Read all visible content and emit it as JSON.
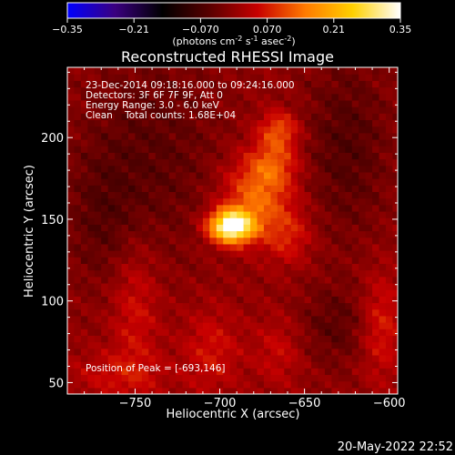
{
  "colorbar": {
    "ticks": [
      "-0.35",
      "-0.21",
      "-0.070",
      "0.070",
      "0.21",
      "0.35"
    ],
    "tick_values": [
      -0.35,
      -0.21,
      -0.07,
      0.07,
      0.21,
      0.35
    ],
    "range": [
      -0.35,
      0.35
    ],
    "unit_main": "(photons cm",
    "unit_sup1": "-2",
    "unit_mid1": " s",
    "unit_sup2": "-1",
    "unit_mid2": " asec",
    "unit_sup3": "-2",
    "unit_end": ")",
    "colors": [
      "#0000ff",
      "#3a0080",
      "#000000",
      "#5a0000",
      "#c80000",
      "#ff7a00",
      "#ffd000",
      "#ffffff"
    ]
  },
  "chart_data": {
    "type": "heatmap",
    "title": "Reconstructed RHESSI Image",
    "xlabel": "Heliocentric X (arcsec)",
    "ylabel": "Heliocentric Y (arcsec)",
    "xlim": [
      -790,
      -595
    ],
    "ylim": [
      43,
      243
    ],
    "xticks": [
      -750,
      -700,
      -650,
      -600
    ],
    "xtick_labels": [
      "−750",
      "−700",
      "−650",
      "−600"
    ],
    "yticks": [
      50,
      100,
      150,
      200
    ],
    "ytick_labels": [
      "50",
      "100",
      "150",
      "200"
    ],
    "peak_value": 0.35,
    "sources": [
      {
        "x": -693,
        "y": 146,
        "sx": 9,
        "sy": 7,
        "amp": 0.38
      },
      {
        "x": -678,
        "y": 165,
        "sx": 14,
        "sy": 16,
        "amp": 0.13
      },
      {
        "x": -665,
        "y": 205,
        "sx": 8,
        "sy": 8,
        "amp": 0.11
      },
      {
        "x": -668,
        "y": 185,
        "sx": 10,
        "sy": 10,
        "amp": 0.09
      },
      {
        "x": -660,
        "y": 140,
        "sx": 10,
        "sy": 12,
        "amp": 0.07
      },
      {
        "x": -750,
        "y": 95,
        "sx": 10,
        "sy": 30,
        "amp": 0.06
      },
      {
        "x": -705,
        "y": 70,
        "sx": 12,
        "sy": 18,
        "amp": 0.06
      },
      {
        "x": -665,
        "y": 70,
        "sx": 10,
        "sy": 15,
        "amp": 0.05
      },
      {
        "x": -605,
        "y": 85,
        "sx": 9,
        "sy": 22,
        "amp": 0.08
      },
      {
        "x": -760,
        "y": 55,
        "sx": 20,
        "sy": 10,
        "amp": 0.05
      },
      {
        "x": -740,
        "y": 190,
        "sx": 30,
        "sy": 45,
        "amp": -0.05
      },
      {
        "x": -625,
        "y": 195,
        "sx": 18,
        "sy": 40,
        "amp": -0.06
      },
      {
        "x": -630,
        "y": 85,
        "sx": 18,
        "sy": 18,
        "amp": -0.05
      },
      {
        "x": -770,
        "y": 150,
        "sx": 15,
        "sy": 30,
        "amp": -0.04
      }
    ]
  },
  "annotations": {
    "line1": "23-Dec-2014 09:18:16.000 to 09:24:16.000",
    "line2": "Detectors: 3F 6F 7F 9F, Att 0",
    "line3": "Energy Range: 3.0 - 6.0 keV",
    "line4": "Clean    Total counts: 1.68E+04",
    "peak": "Position of Peak = [-693,146]"
  },
  "footer": {
    "date": "20-May-2022 22:52"
  }
}
